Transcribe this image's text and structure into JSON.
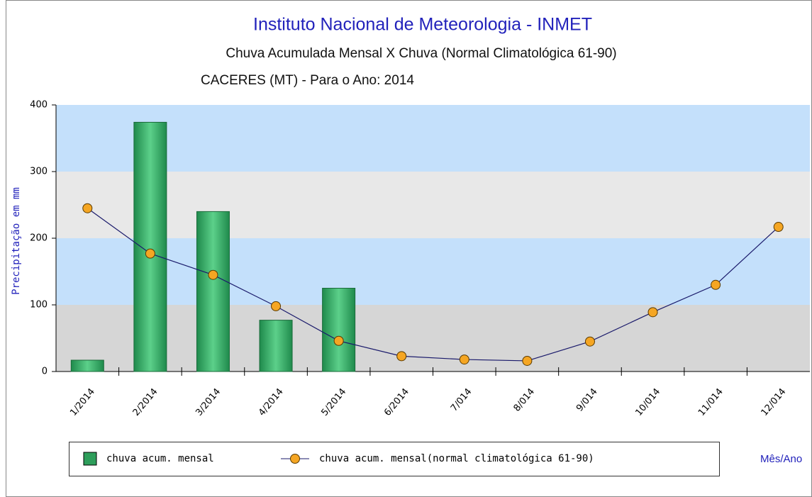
{
  "chart_data": {
    "type": "bar_line",
    "title": "Instituto Nacional de Meteorologia - INMET",
    "subtitle": "Chuva Acumulada Mensal X Chuva (Normal Climatológica 61-90)",
    "subtitle2": "CACERES (MT) - Para o Ano: 2014",
    "y_label": "Precipitação em mm",
    "x_label": "Mês/Ano",
    "categories": [
      "1/2014",
      "2/2014",
      "3/2014",
      "4/2014",
      "5/2014",
      "6/2014",
      "7/014",
      "8/014",
      "9/014",
      "10/014",
      "11/014",
      "12/014"
    ],
    "series": [
      {
        "name": "chuva acum. mensal",
        "type": "bar",
        "color": "#2e9e5b",
        "values": [
          17,
          374,
          240,
          77,
          125,
          null,
          null,
          null,
          null,
          null,
          null,
          null
        ]
      },
      {
        "name": "chuva acum. mensal(normal climatológica 61-90)",
        "type": "line",
        "color": "#f5a623",
        "values": [
          245,
          177,
          145,
          98,
          46,
          23,
          18,
          16,
          45,
          89,
          130,
          217
        ]
      }
    ],
    "ylim": [
      0,
      400
    ],
    "yticks": [
      0,
      100,
      200,
      300,
      400
    ],
    "grid": true
  }
}
